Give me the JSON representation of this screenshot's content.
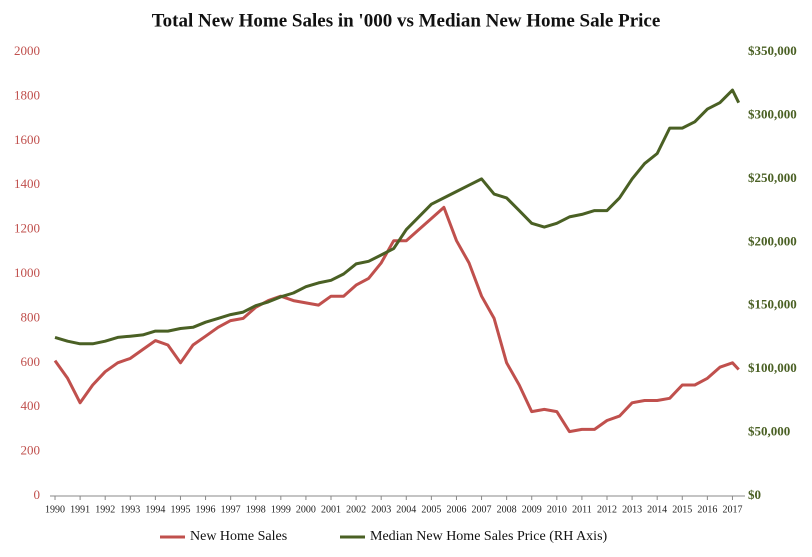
{
  "chart_data": {
    "type": "line",
    "title": "Total New Home Sales in '000 vs Median New Home Sale Price",
    "x": [
      1990,
      1990.5,
      1991,
      1991.5,
      1992,
      1992.5,
      1993,
      1993.5,
      1994,
      1994.5,
      1995,
      1995.5,
      1996,
      1996.5,
      1997,
      1997.5,
      1998,
      1998.5,
      1999,
      1999.5,
      2000,
      2000.5,
      2001,
      2001.5,
      2002,
      2002.5,
      2003,
      2003.5,
      2004,
      2004.5,
      2005,
      2005.5,
      2006,
      2006.5,
      2007,
      2007.5,
      2008,
      2008.5,
      2009,
      2009.5,
      2010,
      2010.5,
      2011,
      2011.5,
      2012,
      2012.5,
      2013,
      2013.5,
      2014,
      2014.5,
      2015,
      2015.5,
      2016,
      2016.5,
      2017,
      2017.25
    ],
    "series": [
      {
        "name": "New Home Sales",
        "color": "#c0504d",
        "values": [
          610,
          530,
          420,
          500,
          560,
          600,
          620,
          660,
          700,
          680,
          600,
          680,
          720,
          760,
          790,
          800,
          850,
          880,
          900,
          880,
          870,
          860,
          900,
          900,
          950,
          980,
          1050,
          1150,
          1150,
          1200,
          1250,
          1300,
          1150,
          1050,
          900,
          800,
          600,
          500,
          380,
          390,
          380,
          290,
          300,
          300,
          340,
          360,
          420,
          430,
          430,
          440,
          500,
          500,
          530,
          580,
          600,
          570
        ]
      },
      {
        "name": "Median New Home Sales Price (RH Axis)",
        "color": "#4a6024",
        "axis": "y2",
        "values": [
          125000,
          122000,
          120000,
          120000,
          122000,
          125000,
          126000,
          127000,
          130000,
          130000,
          132000,
          133000,
          137000,
          140000,
          143000,
          145000,
          150000,
          153000,
          157000,
          160000,
          165000,
          168000,
          170000,
          175000,
          183000,
          185000,
          190000,
          195000,
          210000,
          220000,
          230000,
          235000,
          240000,
          245000,
          250000,
          238000,
          235000,
          225000,
          215000,
          212000,
          215000,
          220000,
          222000,
          225000,
          225000,
          235000,
          250000,
          262000,
          270000,
          290000,
          290000,
          295000,
          305000,
          310000,
          320000,
          310000
        ]
      }
    ],
    "xlim": [
      1989.8,
      2017.5
    ],
    "xticks": [
      1990,
      1991,
      1992,
      1993,
      1994,
      1995,
      1996,
      1997,
      1998,
      1999,
      2000,
      2001,
      2002,
      2003,
      2004,
      2005,
      2006,
      2007,
      2008,
      2009,
      2010,
      2011,
      2012,
      2013,
      2014,
      2015,
      2016,
      2017
    ],
    "ylim": [
      0,
      2000
    ],
    "yticks": [
      0,
      200,
      400,
      600,
      800,
      1000,
      1200,
      1400,
      1600,
      1800,
      2000
    ],
    "y2lim": [
      0,
      350000
    ],
    "y2ticks": [
      {
        "value": 0,
        "label": "$0"
      },
      {
        "value": 50000,
        "label": "$50,000"
      },
      {
        "value": 100000,
        "label": "$100,000"
      },
      {
        "value": 150000,
        "label": "$150,000"
      },
      {
        "value": 200000,
        "label": "$200,000"
      },
      {
        "value": 250000,
        "label": "$250,000"
      },
      {
        "value": 300000,
        "label": "$300,000"
      },
      {
        "value": 350000,
        "label": "$350,000"
      }
    ],
    "legend": "bottom"
  }
}
